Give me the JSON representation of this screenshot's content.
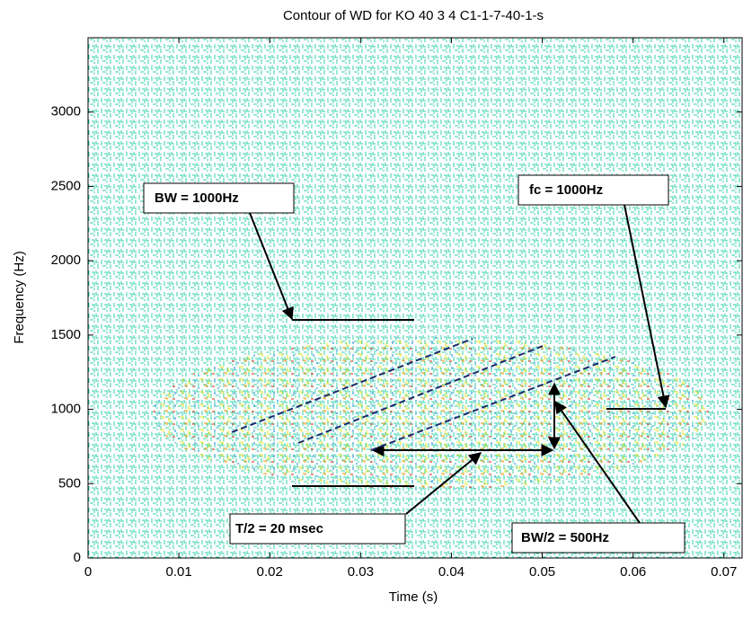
{
  "chart_data": {
    "type": "contour",
    "title": "Contour of WD for KO 40  3 4 C1-1-7-40-1-s",
    "x_label": "Time (s)",
    "y_label": "Frequency (Hz)",
    "xlim": [
      0,
      0.072
    ],
    "xticks": [
      0,
      0.01,
      0.02,
      0.03,
      0.04,
      0.05,
      0.06,
      0.07
    ],
    "ylim": [
      0,
      3500
    ],
    "yticks": [
      0,
      500,
      1000,
      1500,
      2000,
      2500,
      3000
    ],
    "annotations": [
      "BW = 1000Hz",
      "fc = 1000Hz",
      "T/2 = 20 msec",
      "BW/2 = 500Hz"
    ]
  }
}
